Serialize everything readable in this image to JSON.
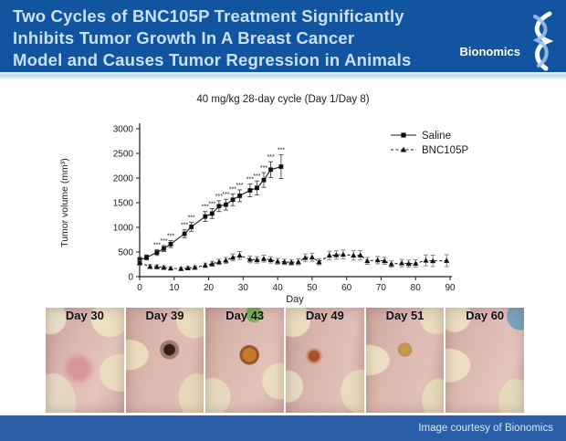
{
  "header": {
    "title_lines": [
      "Two Cycles of BNC105P Treatment Significantly",
      "Inhibits Tumor Growth In A Breast Cancer",
      "Model and Causes Tumor Regression in Animals"
    ],
    "logo_text": "Bionomics"
  },
  "colors": {
    "header_bg": "#11549F",
    "footer_bg": "#2A5FA8",
    "header_text": "#CBE0F4",
    "chart_ink": "#1a1a1a",
    "logo_accent": "#9EC0E6"
  },
  "chart_data": {
    "type": "line",
    "title": "40 mg/kg 28-day cycle (Day 1/Day 8)",
    "xlabel": "Day",
    "ylabel": "Tumor volume (mm³)",
    "xlim": [
      0,
      90
    ],
    "ylim": [
      0,
      3000
    ],
    "xticks": [
      0,
      10,
      20,
      30,
      40,
      50,
      60,
      70,
      80,
      90
    ],
    "yticks": [
      0,
      500,
      1000,
      1500,
      2000,
      2500,
      3000
    ],
    "grid": false,
    "legend_position": "top-right",
    "significance_marker": "***",
    "series": [
      {
        "name": "Saline",
        "marker": "square",
        "line": "solid",
        "x": [
          0,
          2,
          5,
          7,
          9,
          13,
          15,
          19,
          21,
          23,
          25,
          27,
          29,
          32,
          34,
          36,
          38,
          41
        ],
        "y": [
          340,
          390,
          490,
          570,
          660,
          870,
          1010,
          1220,
          1280,
          1430,
          1460,
          1560,
          1640,
          1750,
          1800,
          1960,
          2170,
          2230
        ],
        "err": [
          50,
          50,
          60,
          60,
          70,
          80,
          90,
          100,
          100,
          110,
          110,
          120,
          120,
          130,
          140,
          150,
          160,
          240
        ],
        "stars_start_index": 2
      },
      {
        "name": "BNC105P",
        "marker": "triangle",
        "line": "dashed",
        "x": [
          0,
          3,
          5,
          7,
          9,
          12,
          14,
          16,
          19,
          21,
          23,
          25,
          27,
          29,
          32,
          34,
          36,
          38,
          40,
          42,
          44,
          46,
          48,
          50,
          52,
          55,
          57,
          59,
          62,
          64,
          66,
          69,
          71,
          73,
          76,
          78,
          80,
          83,
          85,
          89
        ],
        "y": [
          280,
          205,
          200,
          185,
          170,
          160,
          175,
          185,
          230,
          260,
          300,
          330,
          390,
          430,
          350,
          340,
          365,
          340,
          310,
          300,
          290,
          300,
          385,
          395,
          300,
          430,
          440,
          450,
          430,
          435,
          320,
          335,
          320,
          255,
          275,
          265,
          270,
          330,
          320,
          325
        ],
        "err": [
          50,
          40,
          40,
          35,
          30,
          30,
          35,
          35,
          45,
          50,
          55,
          60,
          70,
          80,
          70,
          65,
          70,
          65,
          60,
          55,
          55,
          60,
          75,
          80,
          60,
          85,
          85,
          90,
          95,
          95,
          70,
          75,
          70,
          65,
          75,
          70,
          75,
          110,
          115,
          120
        ]
      }
    ]
  },
  "photos": {
    "items": [
      {
        "label": "Day 30",
        "lesion": "raised pink tumor"
      },
      {
        "label": "Day 39",
        "lesion": "dark necrotic scab"
      },
      {
        "label": "Day 43",
        "lesion": "large orange crater"
      },
      {
        "label": "Day 49",
        "lesion": "red-brown scab"
      },
      {
        "label": "Day 51",
        "lesion": "small yellow scab"
      },
      {
        "label": "Day 60",
        "lesion": "healed skin"
      }
    ]
  },
  "footer": {
    "credit": "Image courtesy of Bionomics"
  }
}
